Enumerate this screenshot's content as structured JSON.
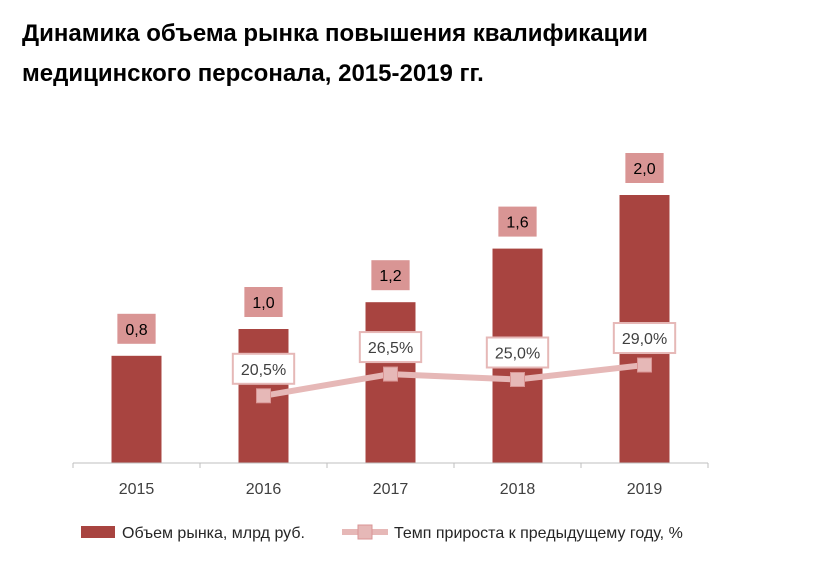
{
  "title": "Динамика объема рынка повышения квалификации медицинского персонала, 2015-2019 гг.",
  "chart_data": {
    "type": "bar",
    "categories": [
      "2015",
      "2016",
      "2017",
      "2018",
      "2019"
    ],
    "series": [
      {
        "name": "Объем рынка, млрд руб.",
        "type": "bar",
        "values": [
          0.8,
          1.0,
          1.2,
          1.6,
          2.0
        ],
        "labels": [
          "0,8",
          "1,0",
          "1,2",
          "1,6",
          "2,0"
        ],
        "color": "#a84440",
        "label_bg": "#d99594"
      },
      {
        "name": "Темп прироста к предыдущему году, %",
        "type": "line",
        "values": [
          null,
          20.5,
          26.5,
          25.0,
          29.0
        ],
        "labels": [
          null,
          "20,5%",
          "26,5%",
          "25,0%",
          "29,0%"
        ],
        "color": "#e6b8b7",
        "label_bg": "#ffffff",
        "label_border": "#e6b8b7"
      }
    ],
    "xlabel": "",
    "ylabel": "",
    "legend": "bottom",
    "grid": false
  }
}
